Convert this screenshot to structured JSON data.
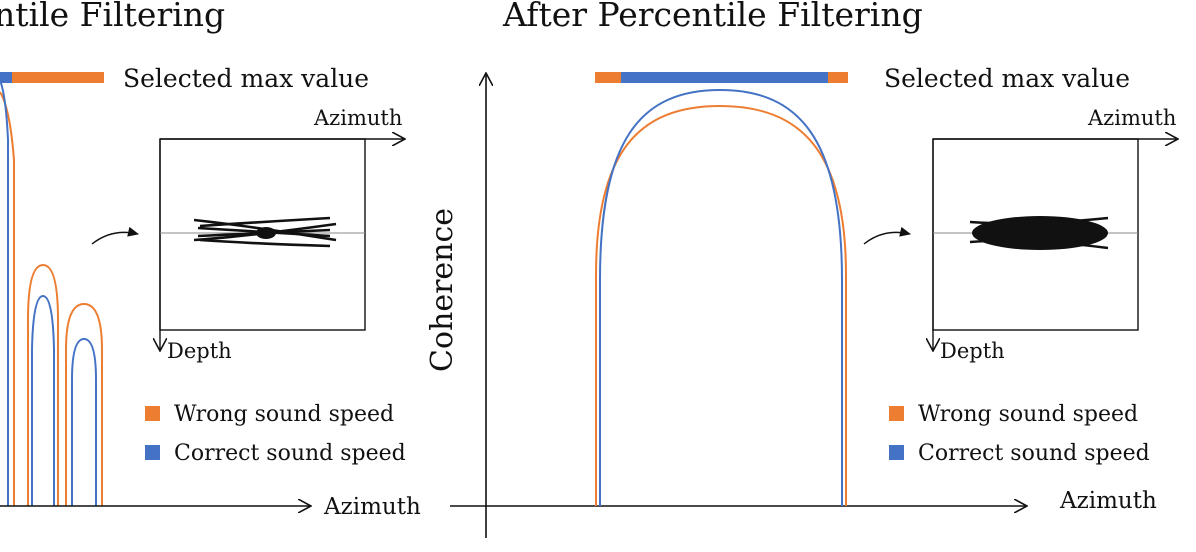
{
  "left_panel": {
    "title": "ntile Filtering",
    "bar_label": "Selected max value",
    "x_axis_label": "Azimuth",
    "inset": {
      "x_label": "Azimuth",
      "y_label": "Depth"
    },
    "legend": [
      {
        "label": "Wrong sound speed",
        "color": "#ED7D31"
      },
      {
        "label": "Correct sound speed",
        "color": "#4472C4"
      }
    ]
  },
  "right_panel": {
    "title": "After Percentile Filtering",
    "bar_label": "Selected max value",
    "y_axis_label": "Coherence",
    "x_axis_label": "Azimuth",
    "inset": {
      "x_label": "Azimuth",
      "y_label": "Depth"
    },
    "legend": [
      {
        "label": "Wrong sound speed",
        "color": "#ED7D31"
      },
      {
        "label": "Correct sound speed",
        "color": "#4472C4"
      }
    ]
  },
  "colors": {
    "wrong": "#ED7D31",
    "correct": "#4472C4"
  }
}
